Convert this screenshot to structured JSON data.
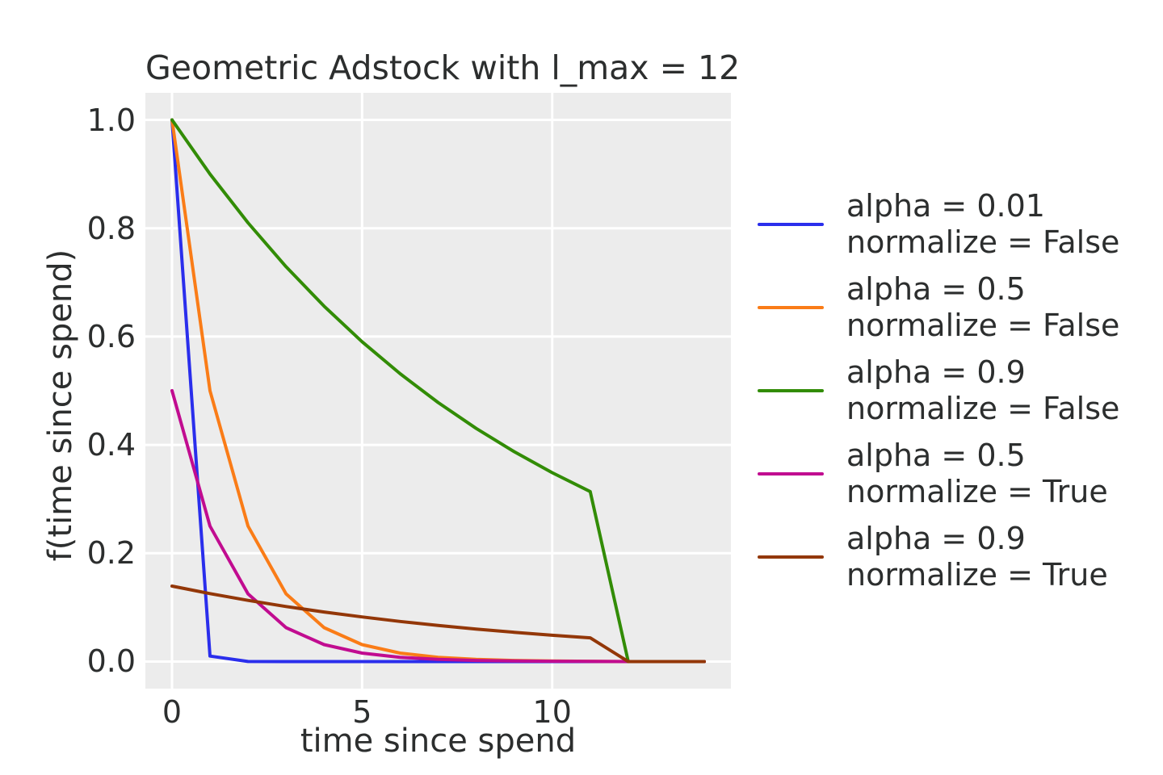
{
  "figure": {
    "background": "#ffffff",
    "panel_background": "#ececec",
    "grid_color": "#ffffff",
    "text_color": "#2c2e2e",
    "line_width": 4,
    "grid_line_width": 3
  },
  "chart_data": {
    "type": "line",
    "title": "Geometric Adstock with l_max = 12",
    "xlabel": "time since spend",
    "ylabel": "f(time since spend)",
    "grid": true,
    "legend_position": "right-outside",
    "xlim": [
      -0.7,
      14.7
    ],
    "ylim": [
      -0.05,
      1.05
    ],
    "xticks": [
      {
        "v": 0,
        "label": "0"
      },
      {
        "v": 5,
        "label": "5"
      },
      {
        "v": 10,
        "label": "10"
      }
    ],
    "yticks": [
      {
        "v": 0.0,
        "label": "0.0"
      },
      {
        "v": 0.2,
        "label": "0.2"
      },
      {
        "v": 0.4,
        "label": "0.4"
      },
      {
        "v": 0.6,
        "label": "0.6"
      },
      {
        "v": 0.8,
        "label": "0.8"
      },
      {
        "v": 1.0,
        "label": "1.0"
      }
    ],
    "x": [
      0,
      1,
      2,
      3,
      4,
      5,
      6,
      7,
      8,
      9,
      10,
      11,
      12,
      13,
      14
    ],
    "series": [
      {
        "name": "alpha = 0.01, normalize = False",
        "legend_lines": [
          "alpha = 0.01",
          "normalize = False"
        ],
        "color": "#2a2eec",
        "values": [
          1,
          0.01,
          0.0001,
          1e-06,
          0,
          0,
          0,
          0,
          0,
          0,
          0,
          0,
          0,
          0,
          0
        ]
      },
      {
        "name": "alpha = 0.5, normalize = False",
        "legend_lines": [
          "alpha = 0.5",
          "normalize = False"
        ],
        "color": "#fa7c17",
        "values": [
          1,
          0.5,
          0.25,
          0.125,
          0.0625,
          0.03125,
          0.015625,
          0.007813,
          0.003906,
          0.001953,
          0.000977,
          0.000488,
          0,
          0,
          0
        ]
      },
      {
        "name": "alpha = 0.9, normalize = False",
        "legend_lines": [
          "alpha = 0.9",
          "normalize = False"
        ],
        "color": "#328c06",
        "values": [
          1,
          0.9,
          0.81,
          0.729,
          0.6561,
          0.59049,
          0.531441,
          0.478297,
          0.430467,
          0.38742,
          0.348678,
          0.313811,
          0,
          0,
          0
        ]
      },
      {
        "name": "alpha = 0.5, normalize = True",
        "legend_lines": [
          "alpha = 0.5",
          "normalize = True"
        ],
        "color": "#c10c90",
        "values": [
          0.500122,
          0.250061,
          0.125031,
          0.062515,
          0.031258,
          0.015629,
          0.007814,
          0.003907,
          0.001954,
          0.000977,
          0.000488,
          0.000244,
          0,
          0,
          0
        ]
      },
      {
        "name": "alpha = 0.9, normalize = True",
        "legend_lines": [
          "alpha = 0.9",
          "normalize = True"
        ],
        "color": "#933708",
        "values": [
          0.139363,
          0.125427,
          0.112884,
          0.101596,
          0.091436,
          0.082293,
          0.074063,
          0.066657,
          0.059991,
          0.053992,
          0.048593,
          0.043734,
          0,
          0,
          0
        ]
      }
    ]
  }
}
